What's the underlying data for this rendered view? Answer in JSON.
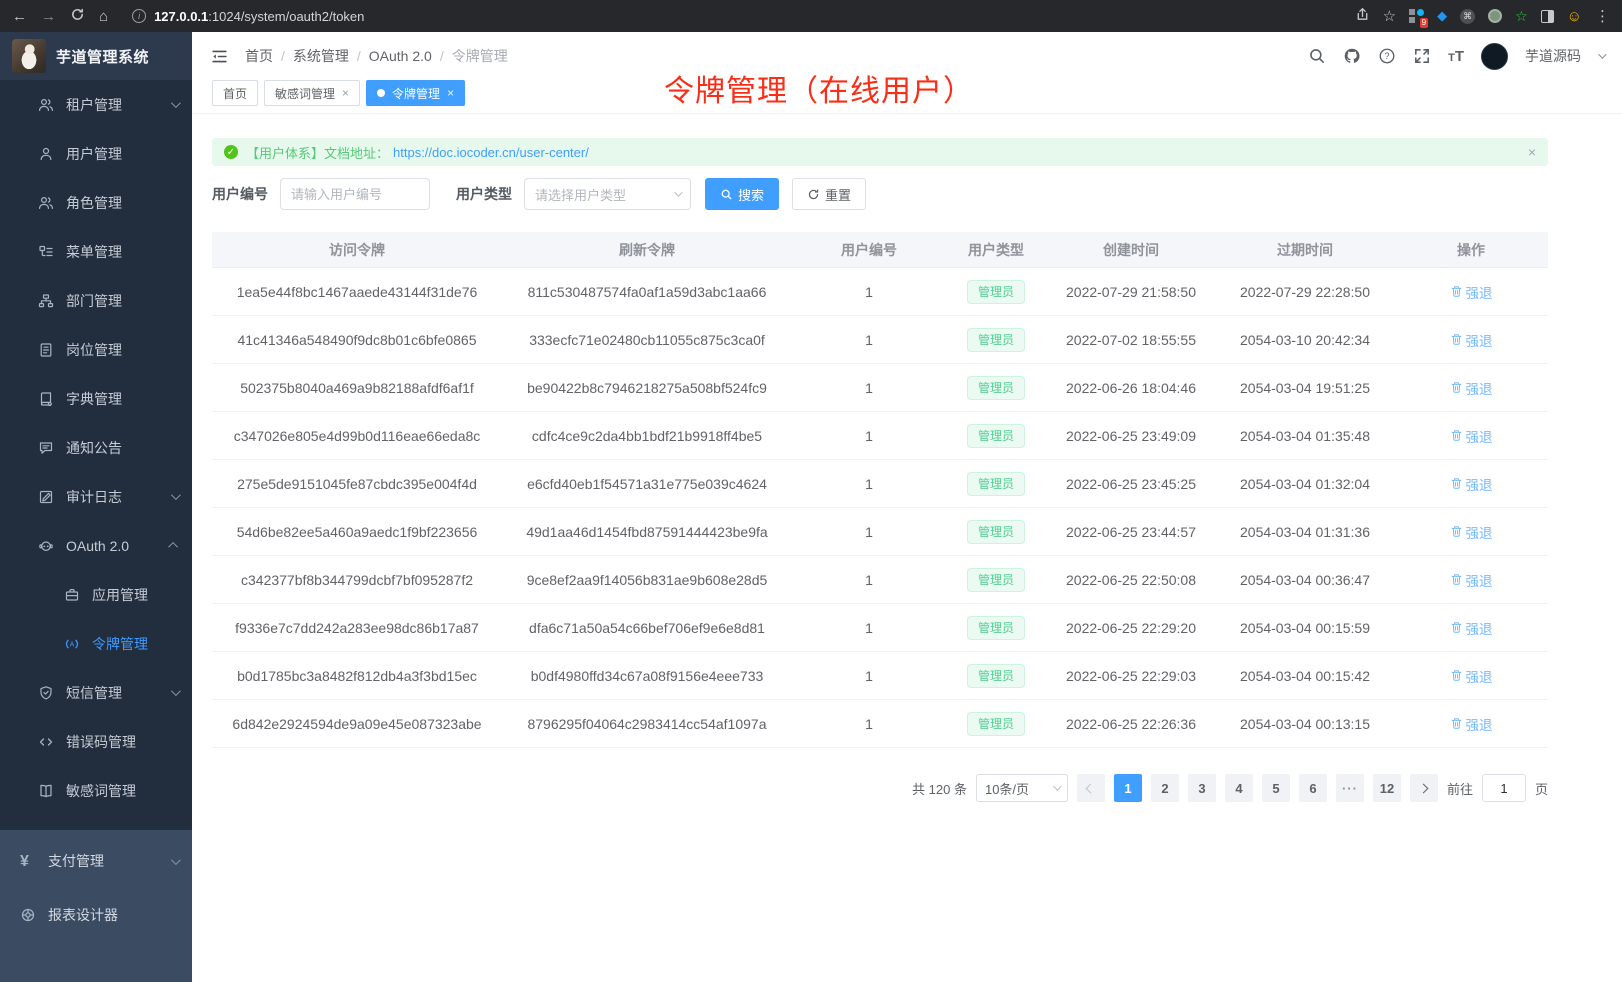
{
  "browser": {
    "url_host": "127.0.0.1",
    "url_path": ":1024/system/oauth2/token",
    "extension_badge": "9",
    "icons": [
      "back-icon",
      "forward-icon",
      "reload-icon",
      "home-icon",
      "info-icon",
      "share-icon",
      "bookmark-star-icon",
      "extensions-icon",
      "drop-icon",
      "command-icon",
      "status-circle-icon",
      "green-star-icon",
      "split-view-icon",
      "emoji-icon",
      "more-menu-icon"
    ]
  },
  "sidebar": {
    "title": "芋道管理系统",
    "items": [
      {
        "icon": "users-icon",
        "label": "租户管理"
      },
      {
        "icon": "user-icon",
        "label": "用户管理"
      },
      {
        "icon": "role-icon",
        "label": "角色管理"
      },
      {
        "icon": "menu-tree-icon",
        "label": "菜单管理"
      },
      {
        "icon": "dept-icon",
        "label": "部门管理"
      },
      {
        "icon": "post-icon",
        "label": "岗位管理"
      },
      {
        "icon": "dict-icon",
        "label": "字典管理"
      },
      {
        "icon": "notice-icon",
        "label": "通知公告"
      },
      {
        "icon": "audit-icon",
        "label": "审计日志"
      },
      {
        "icon": "oauth-icon",
        "label": "OAuth 2.0"
      },
      {
        "icon": "app-icon",
        "label": "应用管理"
      },
      {
        "icon": "token-icon",
        "label": "令牌管理"
      },
      {
        "icon": "sms-icon",
        "label": "短信管理"
      },
      {
        "icon": "errcode-icon",
        "label": "错误码管理"
      },
      {
        "icon": "sensitive-icon",
        "label": "敏感词管理"
      }
    ],
    "bottom_items": [
      {
        "icon": "pay-icon",
        "label": "支付管理"
      },
      {
        "icon": "report-icon",
        "label": "报表设计器"
      }
    ]
  },
  "header": {
    "breadcrumb": [
      "首页",
      "系统管理",
      "OAuth 2.0",
      "令牌管理"
    ],
    "user_name": "芋道源码",
    "icons": [
      "search-icon",
      "github-icon",
      "help-icon",
      "fullscreen-icon",
      "font-size-icon",
      "avatar",
      "caret-down-icon"
    ]
  },
  "tabs": {
    "items": [
      {
        "label": "首页",
        "closable": false,
        "active": false
      },
      {
        "label": "敏感词管理",
        "closable": true,
        "active": false
      },
      {
        "label": "令牌管理",
        "closable": true,
        "active": true
      }
    ]
  },
  "annotation": {
    "text": "令牌管理（在线用户）",
    "color": "#fa2d17"
  },
  "alert": {
    "text": "【用户体系】文档地址：",
    "link": "https://doc.iocoder.cn/user-center/"
  },
  "filters": {
    "user_id_label": "用户编号",
    "user_id_placeholder": "请输入用户编号",
    "user_type_label": "用户类型",
    "user_type_placeholder": "请选择用户类型",
    "search_label": "搜索",
    "reset_label": "重置"
  },
  "table": {
    "columns": [
      "访问令牌",
      "刷新令牌",
      "用户编号",
      "用户类型",
      "创建时间",
      "过期时间",
      "操作"
    ],
    "rows": [
      {
        "access_token": "1ea5e44f8bc1467aaede43144f31de76",
        "refresh_token": "811c530487574fa0af1a59d3abc1aa66",
        "user_id": "1",
        "user_type": "管理员",
        "create_time": "2022-07-29 21:58:50",
        "expire_time": "2022-07-29 22:28:50",
        "action": "强退"
      },
      {
        "access_token": "41c41346a548490f9dc8b01c6bfe0865",
        "refresh_token": "333ecfc71e02480cb11055c875c3ca0f",
        "user_id": "1",
        "user_type": "管理员",
        "create_time": "2022-07-02 18:55:55",
        "expire_time": "2054-03-10 20:42:34",
        "action": "强退"
      },
      {
        "access_token": "502375b8040a469a9b82188afdf6af1f",
        "refresh_token": "be90422b8c7946218275a508bf524fc9",
        "user_id": "1",
        "user_type": "管理员",
        "create_time": "2022-06-26 18:04:46",
        "expire_time": "2054-03-04 19:51:25",
        "action": "强退"
      },
      {
        "access_token": "c347026e805e4d99b0d116eae66eda8c",
        "refresh_token": "cdfc4ce9c2da4bb1bdf21b9918ff4be5",
        "user_id": "1",
        "user_type": "管理员",
        "create_time": "2022-06-25 23:49:09",
        "expire_time": "2054-03-04 01:35:48",
        "action": "强退"
      },
      {
        "access_token": "275e5de9151045fe87cbdc395e004f4d",
        "refresh_token": "e6cfd40eb1f54571a31e775e039c4624",
        "user_id": "1",
        "user_type": "管理员",
        "create_time": "2022-06-25 23:45:25",
        "expire_time": "2054-03-04 01:32:04",
        "action": "强退"
      },
      {
        "access_token": "54d6be82ee5a460a9aedc1f9bf223656",
        "refresh_token": "49d1aa46d1454fbd87591444423be9fa",
        "user_id": "1",
        "user_type": "管理员",
        "create_time": "2022-06-25 23:44:57",
        "expire_time": "2054-03-04 01:31:36",
        "action": "强退"
      },
      {
        "access_token": "c342377bf8b344799dcbf7bf095287f2",
        "refresh_token": "9ce8ef2aa9f14056b831ae9b608e28d5",
        "user_id": "1",
        "user_type": "管理员",
        "create_time": "2022-06-25 22:50:08",
        "expire_time": "2054-03-04 00:36:47",
        "action": "强退"
      },
      {
        "access_token": "f9336e7c7dd242a283ee98dc86b17a87",
        "refresh_token": "dfa6c71a50a54c66bef706ef9e6e8d81",
        "user_id": "1",
        "user_type": "管理员",
        "create_time": "2022-06-25 22:29:20",
        "expire_time": "2054-03-04 00:15:59",
        "action": "强退"
      },
      {
        "access_token": "b0d1785bc3a8482f812db4a3f3bd15ec",
        "refresh_token": "b0df4980ffd34c67a08f9156e4eee733",
        "user_id": "1",
        "user_type": "管理员",
        "create_time": "2022-06-25 22:29:03",
        "expire_time": "2054-03-04 00:15:42",
        "action": "强退"
      },
      {
        "access_token": "6d842e2924594de9a09e45e087323abe",
        "refresh_token": "8796295f04064c2983414cc54af1097a",
        "user_id": "1",
        "user_type": "管理员",
        "create_time": "2022-06-25 22:26:36",
        "expire_time": "2054-03-04 00:13:15",
        "action": "强退"
      }
    ]
  },
  "pagination": {
    "total": "共 120 条",
    "page_size": "10条/页",
    "pages": [
      "1",
      "2",
      "3",
      "4",
      "5",
      "6",
      "···",
      "12"
    ],
    "current": "1",
    "goto_prefix": "前往",
    "goto_value": "1",
    "goto_suffix": "页"
  },
  "colors": {
    "accent": "#409eff",
    "success": "#4fcf8f",
    "danger_annotation": "#fa2d17",
    "sidebar": "#222d3d"
  }
}
